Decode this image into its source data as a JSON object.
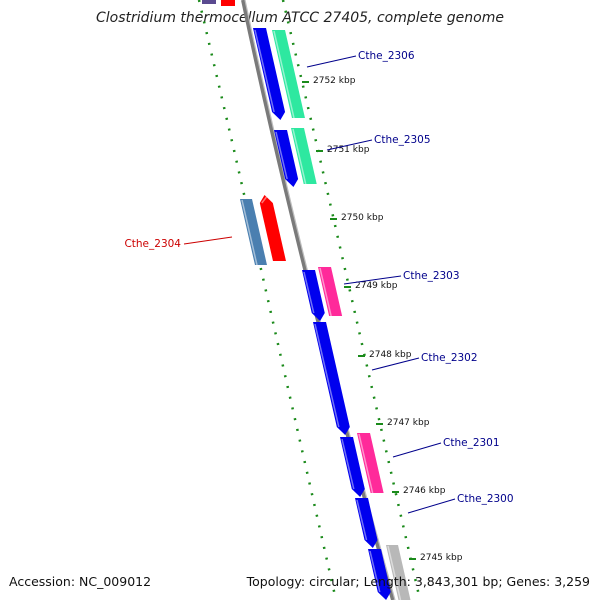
{
  "title": "Clostridium thermocellum ATCC 27405, complete genome",
  "footer": {
    "accession": "Accession: NC_009012",
    "summary": "Topology: circular; Length: 3,843,301 bp; Genes: 3,259"
  },
  "colors": {
    "backbone": "#808080",
    "tick": "#1a8a1a",
    "forward_cds": "#0000ee",
    "reverse_cds": "#ff0000",
    "reverse_feature": "#4a7fb0",
    "feature_green": "#2ee8a0",
    "feature_pink": "#ff2a9a",
    "feature_grey": "#b8b8b8",
    "label_forward": "#00008b",
    "label_reverse": "#cc0000"
  },
  "ticks": [
    "2752 kbp",
    "2751 kbp",
    "2750 kbp",
    "2749 kbp",
    "2748 kbp",
    "2747 kbp",
    "2746 kbp",
    "2745 kbp"
  ],
  "genes": [
    {
      "name": "Cthe_2306",
      "strand": "forward"
    },
    {
      "name": "Cthe_2305",
      "strand": "forward"
    },
    {
      "name": "Cthe_2304",
      "strand": "reverse"
    },
    {
      "name": "Cthe_2303",
      "strand": "forward"
    },
    {
      "name": "Cthe_2302",
      "strand": "forward"
    },
    {
      "name": "Cthe_2301",
      "strand": "forward"
    },
    {
      "name": "Cthe_2300",
      "strand": "forward"
    }
  ]
}
